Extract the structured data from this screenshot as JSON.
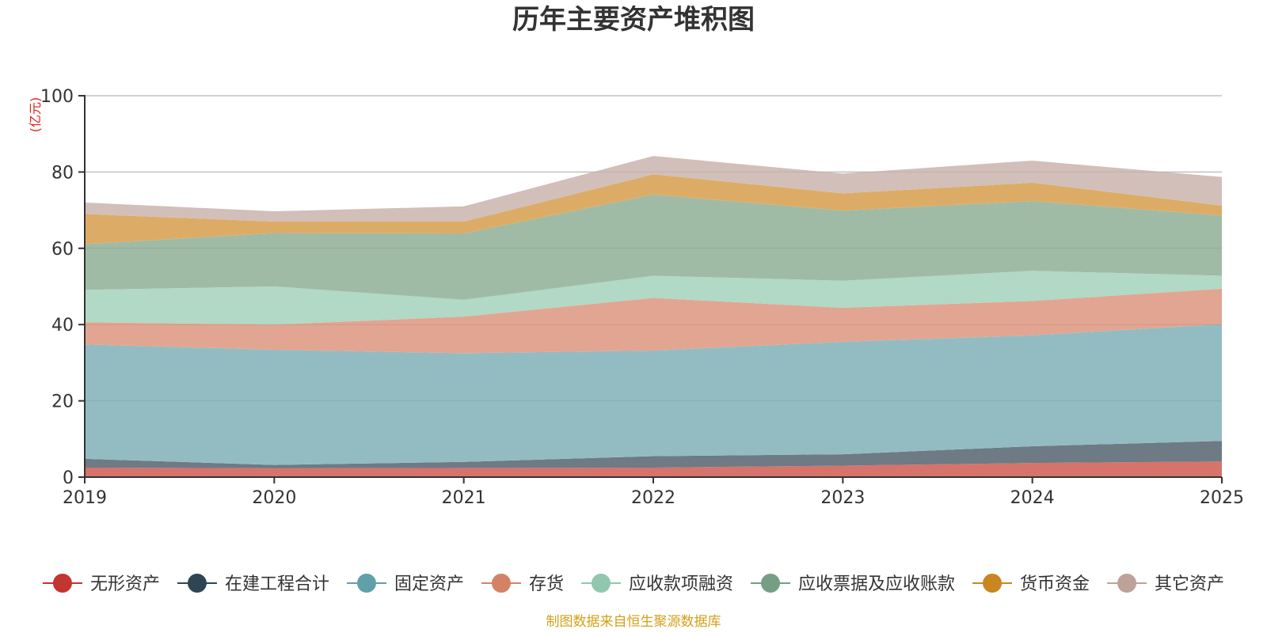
{
  "chart_data": {
    "type": "area",
    "stacked": true,
    "title": "历年主要资产堆积图",
    "ylabel": "(亿元)",
    "source": "制图数据来自恒生聚源数据库",
    "ylim": [
      0,
      100
    ],
    "yticks": [
      0,
      20,
      40,
      60,
      80,
      100
    ],
    "grid": true,
    "legend_position": "bottom",
    "categories": [
      "2019",
      "2020",
      "2021",
      "2022",
      "2023",
      "2024",
      "2025"
    ],
    "series": [
      {
        "name": "无形资产",
        "color": "#d6736b",
        "marker_color": "#c23531",
        "values": [
          2.5,
          2.3,
          2.4,
          2.5,
          3.0,
          3.7,
          4.1
        ]
      },
      {
        "name": "在建工程合计",
        "color": "#6e7a84",
        "marker_color": "#2f4554",
        "values": [
          2.3,
          0.9,
          1.6,
          3.0,
          3.0,
          4.4,
          5.4
        ]
      },
      {
        "name": "固定资产",
        "color": "#93bcc2",
        "marker_color": "#61a0a8",
        "values": [
          30.0,
          30.2,
          28.5,
          27.7,
          29.5,
          29.1,
          30.6
        ]
      },
      {
        "name": "存货",
        "color": "#e2a591",
        "marker_color": "#d48265",
        "values": [
          5.8,
          6.6,
          9.6,
          13.8,
          8.9,
          9.0,
          9.3
        ]
      },
      {
        "name": "应收款项融资",
        "color": "#b1d9c5",
        "marker_color": "#91c7ae",
        "values": [
          8.5,
          10.0,
          4.4,
          5.8,
          7.1,
          7.9,
          3.4
        ]
      },
      {
        "name": "应收票据及应收账款",
        "color": "#a0bba5",
        "marker_color": "#749f83",
        "values": [
          12.0,
          14.0,
          17.4,
          21.3,
          18.4,
          18.3,
          15.8
        ]
      },
      {
        "name": "货币资金",
        "color": "#dcac66",
        "marker_color": "#ca8622",
        "values": [
          7.9,
          3.0,
          3.1,
          5.3,
          4.5,
          4.8,
          2.6
        ]
      },
      {
        "name": "其它资产",
        "color": "#d2bfb9",
        "marker_color": "#bda29a",
        "values": [
          3.0,
          2.7,
          4.0,
          4.8,
          5.2,
          5.8,
          7.5
        ]
      }
    ]
  }
}
